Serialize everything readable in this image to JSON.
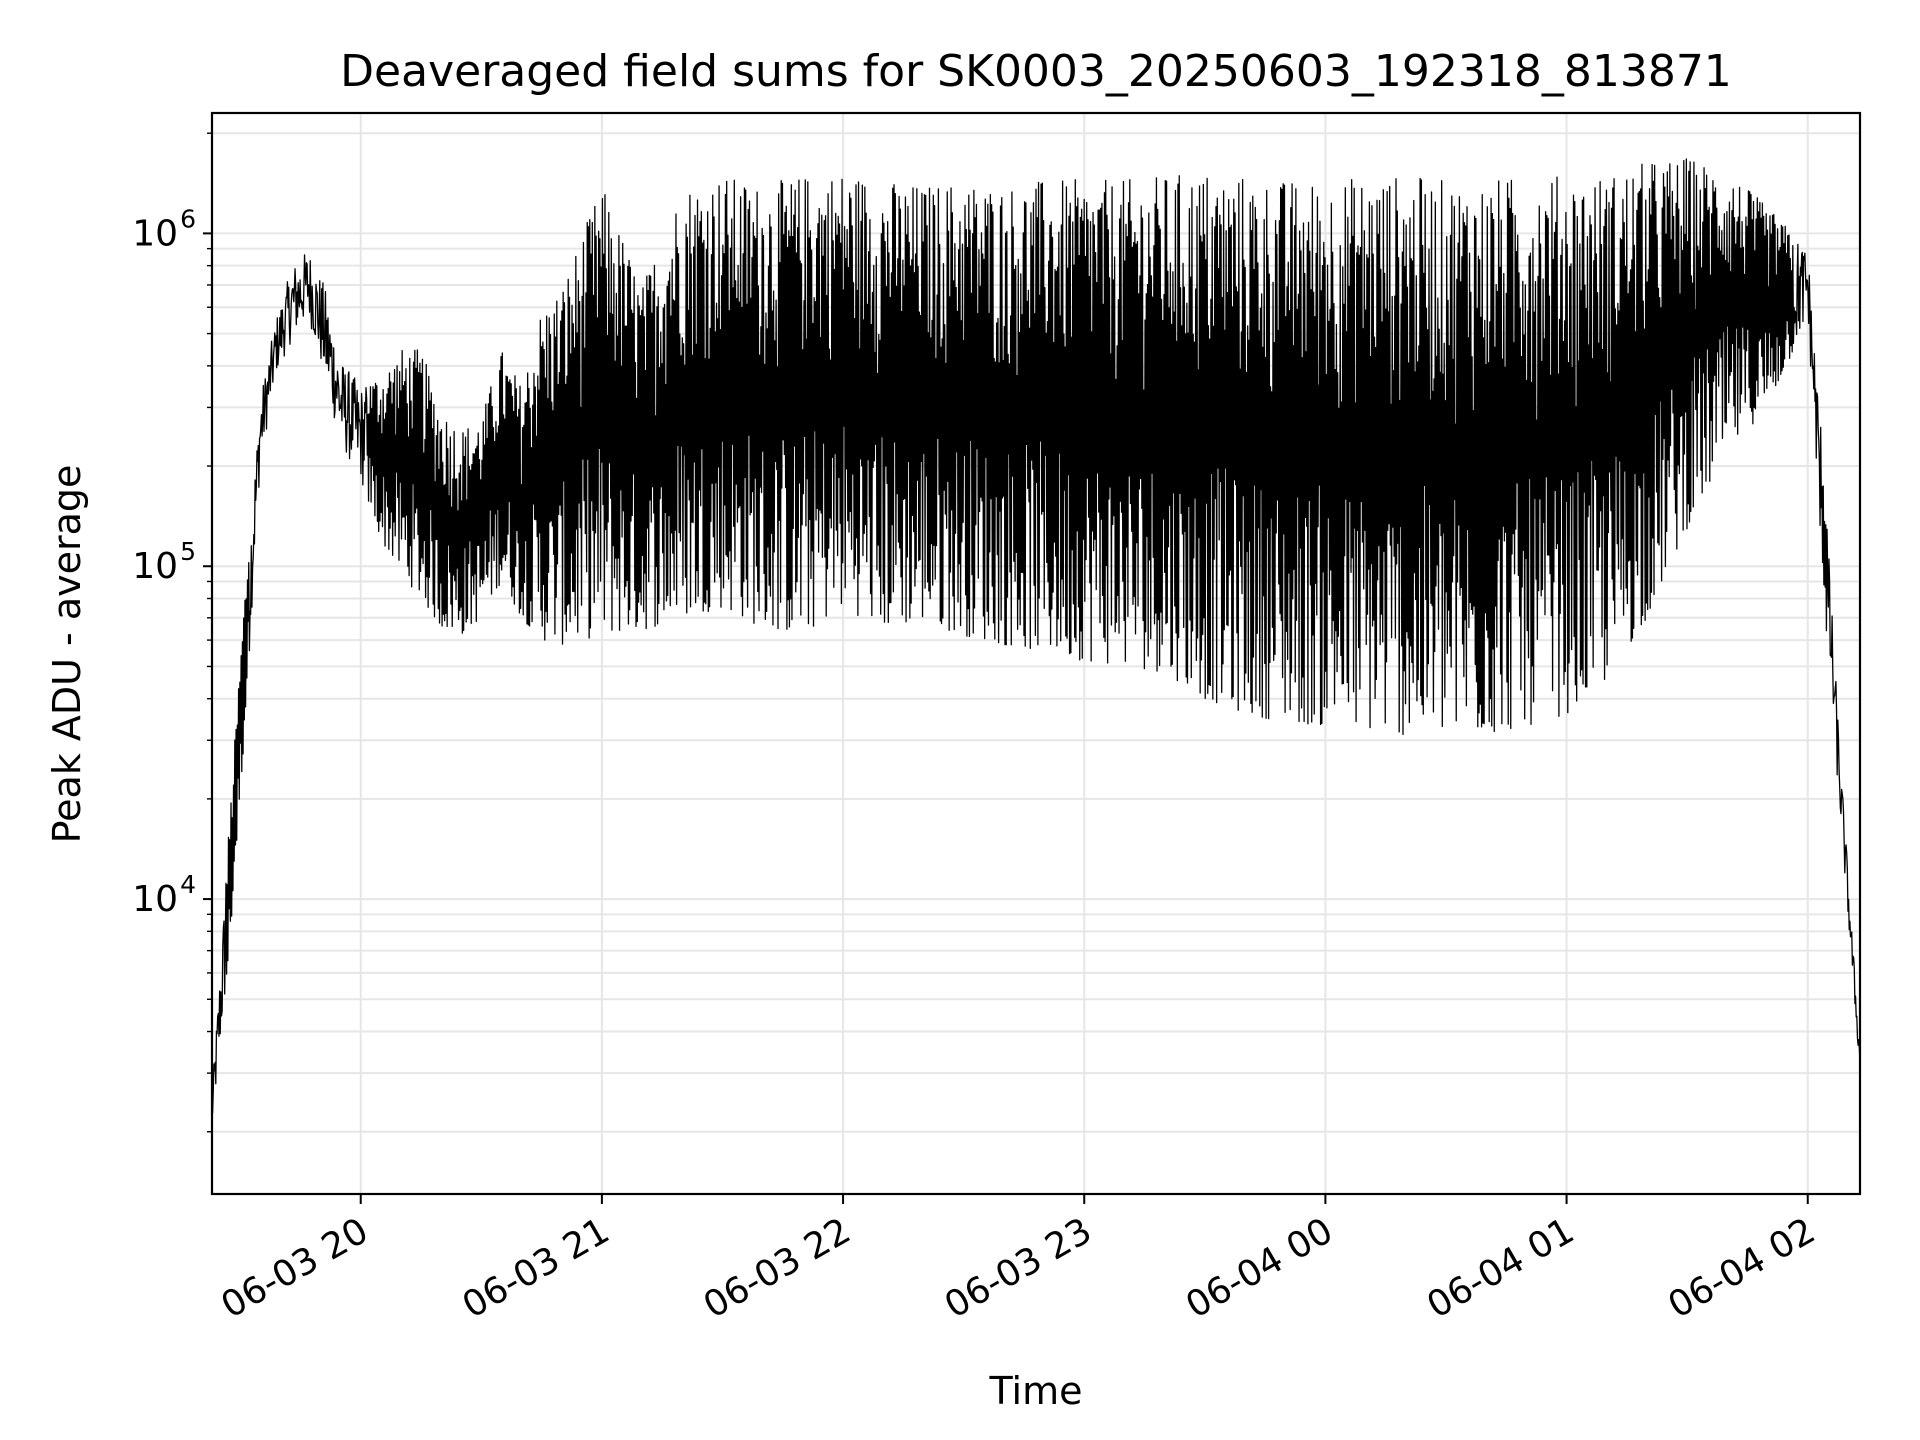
{
  "chart_data": {
    "type": "line",
    "title": "Deaveraged field sums for SK0003_20250603_192318_813871",
    "xlabel": "Time",
    "ylabel": "Peak ADU - average",
    "yscale": "log",
    "ylim": [
      1300,
      2300000
    ],
    "xlim": [
      "2025-06-03T19:23:00",
      "2025-06-04T02:13:00"
    ],
    "grid": true,
    "line_color": "#000000",
    "grid_color": "#e6e6e6",
    "x_ticks": [
      {
        "at": "2025-06-03T20:00:00",
        "label": "06-03 20"
      },
      {
        "at": "2025-06-03T21:00:00",
        "label": "06-03 21"
      },
      {
        "at": "2025-06-03T22:00:00",
        "label": "06-03 22"
      },
      {
        "at": "2025-06-03T23:00:00",
        "label": "06-03 23"
      },
      {
        "at": "2025-06-04T00:00:00",
        "label": "06-04 00"
      },
      {
        "at": "2025-06-04T01:00:00",
        "label": "06-04 01"
      },
      {
        "at": "2025-06-04T02:00:00",
        "label": "06-04 02"
      }
    ],
    "y_ticks": [
      {
        "value": 10000,
        "base": "10",
        "exp": "4"
      },
      {
        "value": 100000,
        "base": "10",
        "exp": "5"
      },
      {
        "value": 1000000,
        "base": "10",
        "exp": "6"
      }
    ],
    "series": [
      {
        "x": [
          "2025-06-03T19:23:00",
          "2025-06-03T19:27:00",
          "2025-06-03T19:31:00",
          "2025-06-03T19:35:00",
          "2025-06-03T19:39:00",
          "2025-06-03T19:43:00",
          "2025-06-03T19:47:00",
          "2025-06-03T19:51:00",
          "2025-06-03T19:55:00",
          "2025-06-03T20:00:00",
          "2025-06-03T20:05:00",
          "2025-06-03T20:10:00",
          "2025-06-03T20:15:00",
          "2025-06-03T20:20:00",
          "2025-06-03T20:25:00",
          "2025-06-03T20:30:00",
          "2025-06-03T20:35:00",
          "2025-06-03T20:40:00",
          "2025-06-03T20:45:00",
          "2025-06-03T20:50:00",
          "2025-06-03T21:00:00",
          "2025-06-03T21:10:00",
          "2025-06-03T21:20:00",
          "2025-06-03T21:30:00",
          "2025-06-03T21:40:00",
          "2025-06-03T21:50:00",
          "2025-06-03T22:00:00",
          "2025-06-03T22:10:00",
          "2025-06-03T22:20:00",
          "2025-06-03T22:30:00",
          "2025-06-03T22:40:00",
          "2025-06-03T22:50:00",
          "2025-06-03T23:00:00",
          "2025-06-03T23:10:00",
          "2025-06-03T23:20:00",
          "2025-06-03T23:30:00",
          "2025-06-03T23:40:00",
          "2025-06-03T23:50:00",
          "2025-06-04T00:00:00",
          "2025-06-04T00:10:00",
          "2025-06-04T00:20:00",
          "2025-06-04T00:30:00",
          "2025-06-04T00:40:00",
          "2025-06-04T00:50:00",
          "2025-06-04T01:00:00",
          "2025-06-04T01:10:00",
          "2025-06-04T01:20:00",
          "2025-06-04T01:30:00",
          "2025-06-04T01:40:00",
          "2025-06-04T01:50:00",
          "2025-06-04T02:00:00",
          "2025-06-04T02:04:00",
          "2025-06-04T02:08:00",
          "2025-06-04T02:13:00"
        ],
        "y_low": [
          2000,
          6000,
          30000,
          200000,
          380000,
          480000,
          560000,
          360000,
          230000,
          180000,
          120000,
          95000,
          80000,
          65000,
          62000,
          70000,
          90000,
          70000,
          60000,
          58000,
          62000,
          64000,
          70000,
          75000,
          65000,
          62000,
          75000,
          65000,
          68000,
          62000,
          58000,
          55000,
          52000,
          50000,
          48000,
          40000,
          36000,
          34000,
          33000,
          32000,
          31000,
          31000,
          31000,
          33000,
          36000,
          45000,
          70000,
          130000,
          220000,
          300000,
          550000,
          80000,
          18000,
          3000
        ],
        "y_high": [
          2600,
          15000,
          80000,
          320000,
          560000,
          800000,
          900000,
          700000,
          420000,
          350000,
          380000,
          450000,
          450000,
          300000,
          260000,
          280000,
          450000,
          350000,
          600000,
          700000,
          1400000,
          700000,
          1400000,
          1500000,
          1400000,
          1500000,
          1550000,
          1450000,
          1400000,
          1450000,
          1400000,
          1450000,
          1450000,
          1450000,
          1500000,
          1550000,
          1500000,
          1450000,
          1450000,
          1500000,
          1500000,
          1450000,
          1450000,
          1500000,
          1500000,
          1500000,
          1650000,
          1700000,
          1550000,
          1200000,
          900000,
          200000,
          28000,
          3500
        ]
      }
    ]
  }
}
